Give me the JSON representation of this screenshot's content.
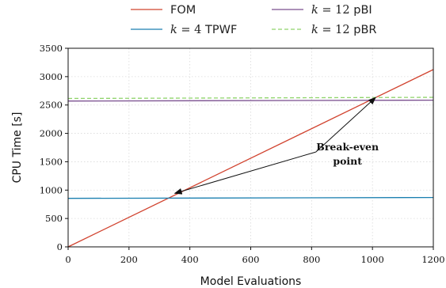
{
  "chart_data": {
    "type": "line",
    "xlabel": "Model Evaluations",
    "ylabel": "CPU Time [s]",
    "xlim": [
      0,
      1200
    ],
    "ylim": [
      0,
      3500
    ],
    "xticks": [
      0,
      200,
      400,
      600,
      800,
      1000,
      1200
    ],
    "yticks": [
      0,
      500,
      1000,
      1500,
      2000,
      2500,
      3000,
      3500
    ],
    "grid": true,
    "legend_position": "top-center",
    "series": [
      {
        "name": "FOM",
        "legend_prefix": "",
        "legend_name": "FOM",
        "color": "#d1432f",
        "dash": "solid",
        "x": [
          0,
          1200
        ],
        "y": [
          0,
          3125
        ]
      },
      {
        "name": "k = 4 TPWF",
        "legend_prefix": "k = 4",
        "legend_name": "TPWF",
        "color": "#1a7fb0",
        "dash": "solid",
        "x": [
          0,
          1200
        ],
        "y": [
          855,
          870
        ]
      },
      {
        "name": "k = 12 pBI",
        "legend_prefix": "k = 12",
        "legend_name": "pBI",
        "color": "#7a4f8f",
        "dash": "solid",
        "x": [
          0,
          1200
        ],
        "y": [
          2570,
          2585
        ]
      },
      {
        "name": "k = 12 pBR",
        "legend_prefix": "k = 12",
        "legend_name": "pBR",
        "color": "#8fd36b",
        "dash": "dashed",
        "x": [
          0,
          1200
        ],
        "y": [
          2615,
          2635
        ]
      }
    ],
    "annotations": [
      {
        "text_line1": "Break-even",
        "text_line2": "point",
        "text_x": 840,
        "text_y": 1700,
        "targets": [
          {
            "x": 340,
            "y": 915
          },
          {
            "x": 1000,
            "y": 2605
          }
        ]
      }
    ]
  }
}
